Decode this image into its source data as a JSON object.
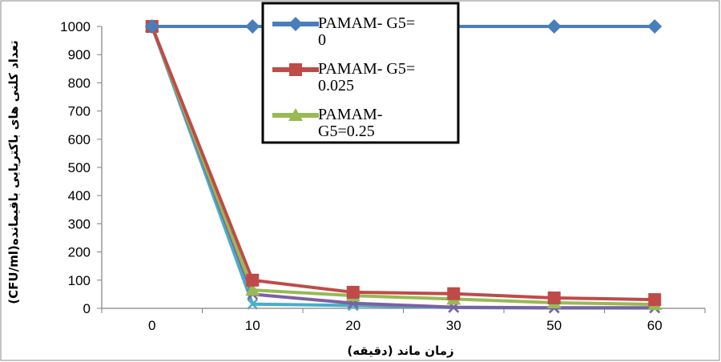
{
  "chart_data": {
    "type": "line",
    "title": "",
    "xlabel": "زمان ماند (دقیقه)",
    "ylabel": "تعداد کلنی های باکتریایی باقیمانده(CFU/ml)",
    "categories": [
      "0",
      "10",
      "20",
      "30",
      "50",
      "60"
    ],
    "ylim": [
      0,
      1000
    ],
    "yticks": [
      0,
      100,
      200,
      300,
      400,
      500,
      600,
      700,
      800,
      900,
      1000
    ],
    "grid": false,
    "legend_position": "top-center",
    "series": [
      {
        "name": "PAMAM- G5= 0",
        "legend_lines": [
          "PAMAM- G5=",
          "0"
        ],
        "color": "#4A7EBB",
        "marker": "diamond",
        "values": [
          1000,
          1000,
          1000,
          1000,
          1000,
          1000
        ]
      },
      {
        "name": "PAMAM- G5= 0.025",
        "legend_lines": [
          "PAMAM- G5=",
          "0.025"
        ],
        "color": "#BE4B48",
        "marker": "square",
        "values": [
          1000,
          100,
          57,
          52,
          37,
          31
        ]
      },
      {
        "name": "PAMAM- G5=0.25",
        "legend_lines": [
          "PAMAM-",
          "G5=0.25"
        ],
        "color": "#98B954",
        "marker": "triangle",
        "values": [
          1000,
          65,
          45,
          33,
          20,
          14
        ]
      },
      {
        "name": "",
        "legend_lines": [],
        "color": "#7D60A0",
        "marker": "x",
        "values": [
          1000,
          50,
          18,
          4,
          2,
          2
        ]
      },
      {
        "name": "",
        "legend_lines": [],
        "color": "#4BACC6",
        "marker": "x",
        "values": [
          1000,
          15,
          10,
          3,
          1,
          1
        ]
      }
    ]
  }
}
